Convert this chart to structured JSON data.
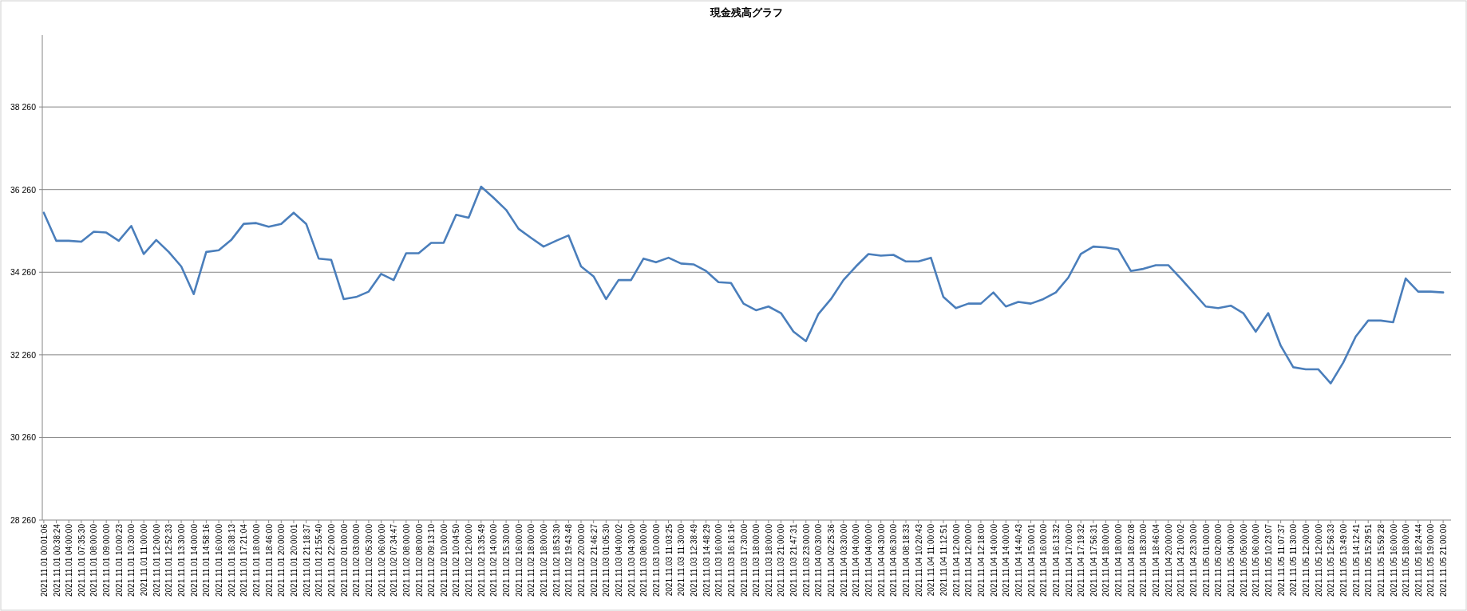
{
  "chart_data": {
    "type": "line",
    "title": "現金残高グラフ",
    "categories": [
      "2021.11.01 00:01:06",
      "2021.11.01 00:38:24",
      "2021.11.01 04:00:00",
      "2021.11.01 07:35:30",
      "2021.11.01 08:00:00",
      "2021.11.01 09:00:00",
      "2021.11.01 10:00:23",
      "2021.11.01 10:30:00",
      "2021.11.01 11:00:00",
      "2021.11.01 12:00:00",
      "2021.11.01 12:52:33",
      "2021.11.01 13:30:00",
      "2021.11.01 14:00:00",
      "2021.11.01 14:58:16",
      "2021.11.01 16:00:00",
      "2021.11.01 16:38:13",
      "2021.11.01 17:21:04",
      "2021.11.01 18:00:00",
      "2021.11.01 18:46:00",
      "2021.11.01 20:00:00",
      "2021.11.01 20:00:01",
      "2021.11.01 21:18:37",
      "2021.11.01 21:55:40",
      "2021.11.01 22:00:00",
      "2021.11.02 01:00:00",
      "2021.11.02 03:00:00",
      "2021.11.02 05:30:00",
      "2021.11.02 06:00:00",
      "2021.11.02 07:34:47",
      "2021.11.02 08:00:00",
      "2021.11.02 08:00:00",
      "2021.11.02 09:13:10",
      "2021.11.02 10:00:00",
      "2021.11.02 10:04:50",
      "2021.11.02 12:00:00",
      "2021.11.02 13:35:49",
      "2021.11.02 14:00:00",
      "2021.11.02 15:30:00",
      "2021.11.02 16:00:00",
      "2021.11.02 18:00:00",
      "2021.11.02 18:00:00",
      "2021.11.02 18:53:30",
      "2021.11.02 19:43:48",
      "2021.11.02 20:00:00",
      "2021.11.02 21:46:27",
      "2021.11.03 01:05:30",
      "2021.11.03 04:00:02",
      "2021.11.03 04:30:00",
      "2021.11.03 08:00:00",
      "2021.11.03 10:00:00",
      "2021.11.03 11:03:25",
      "2021.11.03 11:30:00",
      "2021.11.03 12:38:49",
      "2021.11.03 14:48:29",
      "2021.11.03 16:00:00",
      "2021.11.03 16:16:16",
      "2021.11.03 17:30:00",
      "2021.11.03 18:00:00",
      "2021.11.03 18:00:00",
      "2021.11.03 21:00:00",
      "2021.11.03 21:47:31",
      "2021.11.03 23:00:00",
      "2021.11.04 00:30:00",
      "2021.11.04 02:25:36",
      "2021.11.04 03:30:00",
      "2021.11.04 04:00:00",
      "2021.11.04 04:00:00",
      "2021.11.04 04:30:00",
      "2021.11.04 06:30:00",
      "2021.11.04 08:18:33",
      "2021.11.04 10:20:43",
      "2021.11.04 11:00:00",
      "2021.11.04 11:12:51",
      "2021.11.04 12:00:00",
      "2021.11.04 12:00:00",
      "2021.11.04 12:18:00",
      "2021.11.04 14:00:00",
      "2021.11.04 14:00:00",
      "2021.11.04 14:40:43",
      "2021.11.04 15:00:01",
      "2021.11.04 16:00:00",
      "2021.11.04 16:13:32",
      "2021.11.04 17:00:00",
      "2021.11.04 17:19:32",
      "2021.11.04 17:56:31",
      "2021.11.04 18:00:00",
      "2021.11.04 18:00:00",
      "2021.11.04 18:02:08",
      "2021.11.04 18:30:00",
      "2021.11.04 18:46:04",
      "2021.11.04 20:00:00",
      "2021.11.04 21:00:02",
      "2021.11.04 23:30:00",
      "2021.11.05 01:00:00",
      "2021.11.05 02:00:00",
      "2021.11.05 04:00:00",
      "2021.11.05 05:00:00",
      "2021.11.05 06:00:00",
      "2021.11.05 10:23:07",
      "2021.11.05 11:07:37",
      "2021.11.05 11:30:00",
      "2021.11.05 12:00:00",
      "2021.11.05 12:00:00",
      "2021.11.05 12:56:33",
      "2021.11.05 13:49:00",
      "2021.11.05 14:12:41",
      "2021.11.05 15:29:51",
      "2021.11.05 15:59:28",
      "2021.11.05 16:00:00",
      "2021.11.05 18:00:00",
      "2021.11.05 18:24:44",
      "2021.11.05 19:00:00",
      "2021.11.05 21:00:00"
    ],
    "series": [
      {
        "color": "#4a7ebb",
        "values": [
          35700,
          35020,
          35020,
          35000,
          35240,
          35220,
          35020,
          35380,
          34700,
          35040,
          34750,
          34400,
          33730,
          34750,
          34790,
          35040,
          35430,
          35450,
          35360,
          35430,
          35700,
          35430,
          34590,
          34560,
          33610,
          33660,
          33790,
          34220,
          34070,
          34720,
          34720,
          34970,
          34970,
          35650,
          35580,
          36330,
          36060,
          35770,
          35310,
          35090,
          34880,
          35020,
          35150,
          34400,
          34160,
          33610,
          34070,
          34070,
          34590,
          34500,
          34610,
          34470,
          34450,
          34290,
          34020,
          34000,
          33500,
          33340,
          33430,
          33270,
          32820,
          32590,
          33250,
          33610,
          34070,
          34400,
          34700,
          34660,
          34680,
          34520,
          34520,
          34610,
          33660,
          33390,
          33500,
          33500,
          33770,
          33430,
          33540,
          33500,
          33610,
          33770,
          34130,
          34700,
          34880,
          34860,
          34810,
          34290,
          34340,
          34430,
          34430,
          34110,
          33770,
          33430,
          33390,
          33450,
          33270,
          32820,
          33270,
          32480,
          31960,
          31910,
          31910,
          31570,
          32070,
          32700,
          33090,
          33090,
          33050,
          34110,
          33790,
          33790,
          33770
        ]
      }
    ],
    "ylim": [
      28260,
      40000
    ],
    "yticks": [
      {
        "value": 28260,
        "label": "28 260"
      },
      {
        "value": 30260,
        "label": "30 260"
      },
      {
        "value": 32260,
        "label": "32 260"
      },
      {
        "value": 34260,
        "label": "34 260"
      },
      {
        "value": 36260,
        "label": "36 260"
      },
      {
        "value": 38260,
        "label": "38 260"
      }
    ],
    "grid": "y"
  }
}
